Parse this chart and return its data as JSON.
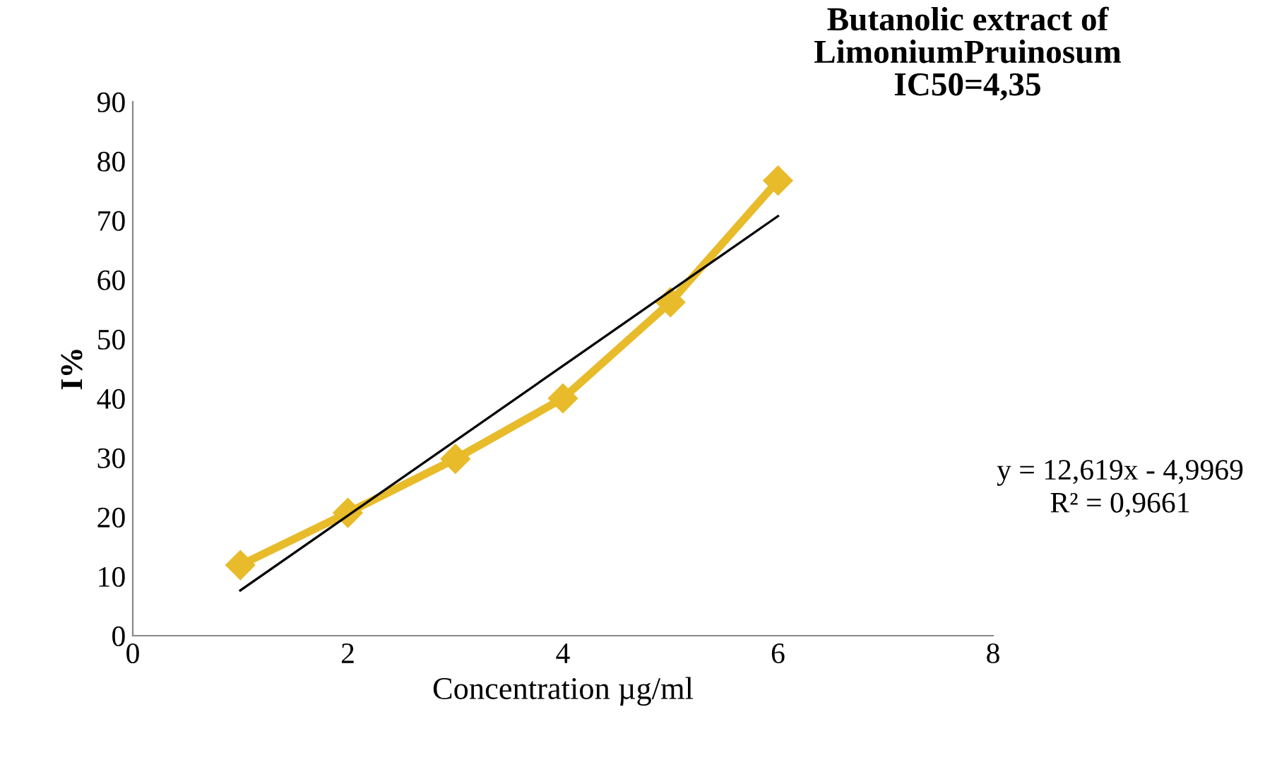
{
  "chart_data": {
    "type": "line",
    "title": "Butanolic extract of\nLimoniumPruinosum\nIC50=4,35",
    "xlabel": "Concentration µg/ml",
    "ylabel": "I%",
    "x": [
      1,
      2,
      3,
      4,
      5,
      6
    ],
    "series": [
      {
        "color": "#e8bb2a",
        "values": [
          11.9,
          20.7,
          29.8,
          40,
          56.2,
          76.7
        ],
        "marker": "diamond"
      },
      {
        "type": "line",
        "color": "#000000",
        "x": [
          1,
          6
        ],
        "values": [
          7.62,
          70.72
        ],
        "marker": "none"
      }
    ],
    "xlim": [
      0,
      8
    ],
    "xticks": [
      0,
      2,
      4,
      6,
      8
    ],
    "ylim": [
      0,
      90
    ],
    "yticks": [
      0,
      10,
      20,
      30,
      40,
      50,
      60,
      70,
      80,
      90
    ],
    "grid": false,
    "legend": false,
    "annotations": [
      "y = 12,619x - 4,9969\nR² = 0,9661"
    ]
  }
}
